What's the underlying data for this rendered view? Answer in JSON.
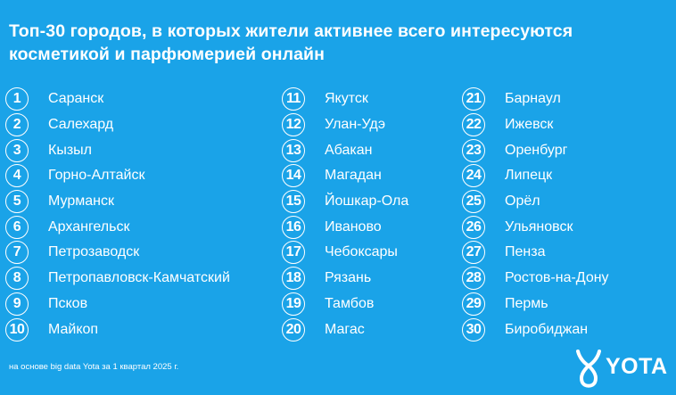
{
  "title": "Топ-30 городов, в которых жители активнее всего интересуются косметикой и парфюмерией онлайн",
  "columns": [
    [
      {
        "num": "1",
        "city": "Саранск"
      },
      {
        "num": "2",
        "city": "Салехард"
      },
      {
        "num": "3",
        "city": "Кызыл"
      },
      {
        "num": "4",
        "city": "Горно-Алтайск"
      },
      {
        "num": "5",
        "city": "Мурманск"
      },
      {
        "num": "6",
        "city": "Архангельск"
      },
      {
        "num": "7",
        "city": "Петрозаводск"
      },
      {
        "num": "8",
        "city": "Петропавловск-Камчатский"
      },
      {
        "num": "9",
        "city": "Псков"
      },
      {
        "num": "10",
        "city": "Майкоп"
      }
    ],
    [
      {
        "num": "11",
        "city": "Якутск"
      },
      {
        "num": "12",
        "city": "Улан-Удэ"
      },
      {
        "num": "13",
        "city": "Абакан"
      },
      {
        "num": "14",
        "city": "Магадан"
      },
      {
        "num": "15",
        "city": "Йошкар-Ола"
      },
      {
        "num": "16",
        "city": "Иваново"
      },
      {
        "num": "17",
        "city": "Чебоксары"
      },
      {
        "num": "18",
        "city": "Рязань"
      },
      {
        "num": "19",
        "city": "Тамбов"
      },
      {
        "num": "20",
        "city": "Магас"
      }
    ],
    [
      {
        "num": "21",
        "city": "Барнаул"
      },
      {
        "num": "22",
        "city": "Ижевск"
      },
      {
        "num": "23",
        "city": "Оренбург"
      },
      {
        "num": "24",
        "city": "Липецк"
      },
      {
        "num": "25",
        "city": "Орёл"
      },
      {
        "num": "26",
        "city": "Ульяновск"
      },
      {
        "num": "27",
        "city": "Пенза"
      },
      {
        "num": "28",
        "city": "Ростов-на-Дону"
      },
      {
        "num": "29",
        "city": "Пермь"
      },
      {
        "num": "30",
        "city": "Биробиджан"
      }
    ]
  ],
  "footnote": "на основе big data Yota за 1 квартал 2025 г.",
  "logo": {
    "text": "YOTA",
    "icon": "yota-logo-icon"
  },
  "colors": {
    "background": "#1aa3e8",
    "foreground": "#ffffff"
  }
}
